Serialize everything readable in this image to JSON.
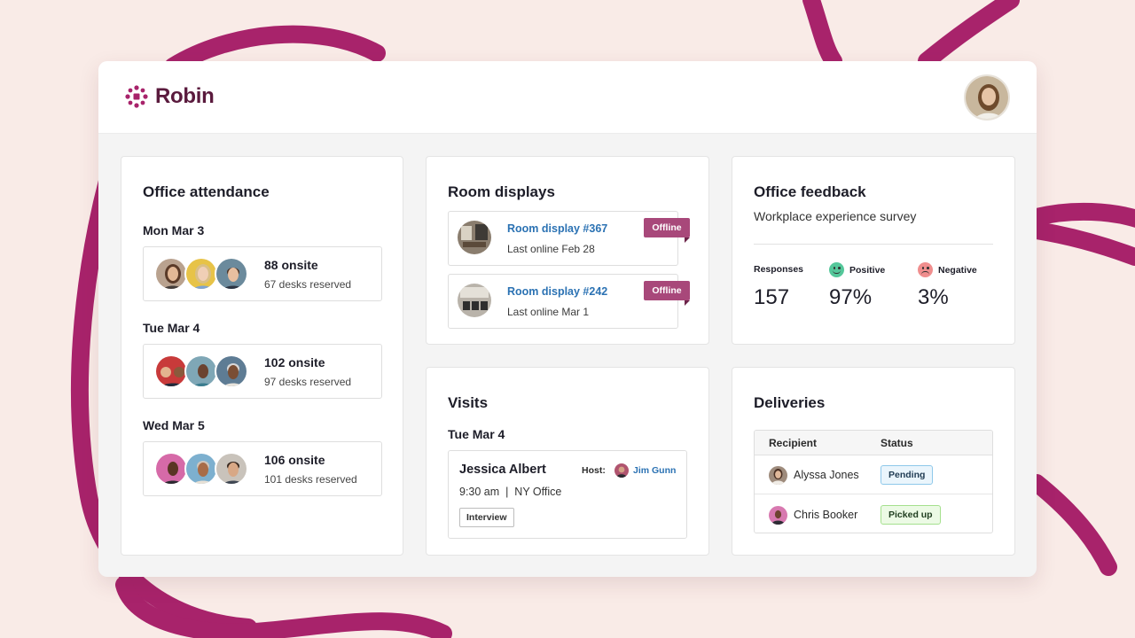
{
  "app": {
    "name": "Robin"
  },
  "colors": {
    "brand": "#5a1a3d",
    "squiggle": "#a8236b",
    "link": "#2b72b3",
    "offline_badge": "#a8487a",
    "pending_bg": "#eaf5fc",
    "picked_up_bg": "#ecfae5",
    "positive": "#54c79a",
    "negative": "#f08e8e"
  },
  "attendance": {
    "title": "Office attendance",
    "days": [
      {
        "label": "Mon Mar 3",
        "onsite": "88 onsite",
        "desks": "67 desks reserved"
      },
      {
        "label": "Tue Mar 4",
        "onsite": "102 onsite",
        "desks": "97 desks reserved"
      },
      {
        "label": "Wed Mar 5",
        "onsite": "106 onsite",
        "desks": "101 desks reserved"
      }
    ]
  },
  "room_displays": {
    "title": "Room displays",
    "items": [
      {
        "name": "Room display #367",
        "status": "Last online Feb 28",
        "badge": "Offline"
      },
      {
        "name": "Room display #242",
        "status": "Last online Mar 1",
        "badge": "Offline"
      }
    ]
  },
  "feedback": {
    "title": "Office feedback",
    "subtitle": "Workplace experience survey",
    "responses_label": "Responses",
    "responses_value": "157",
    "positive_label": "Positive",
    "positive_value": "97%",
    "negative_label": "Negative",
    "negative_value": "3%"
  },
  "visits": {
    "title": "Visits",
    "day": "Tue Mar 4",
    "visitor": "Jessica Albert",
    "host_label": "Host:",
    "host_name": "Jim Gunn",
    "time": "9:30 am  |  NY Office",
    "tag": "Interview"
  },
  "deliveries": {
    "title": "Deliveries",
    "col_recipient": "Recipient",
    "col_status": "Status",
    "rows": [
      {
        "recipient": "Alyssa Jones",
        "status": "Pending"
      },
      {
        "recipient": "Chris Booker",
        "status": "Picked up"
      }
    ]
  }
}
